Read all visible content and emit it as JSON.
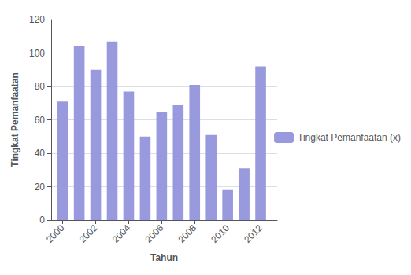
{
  "chart_data": {
    "type": "bar",
    "x": [
      2000,
      2001,
      2002,
      2003,
      2004,
      2005,
      2006,
      2007,
      2008,
      2009,
      2010,
      2011,
      2012
    ],
    "series": [
      {
        "name": "Tingkat Pemanfaatan (x)",
        "color": "#9999DD",
        "values": [
          71,
          104,
          90,
          107,
          77,
          50,
          65,
          69,
          81,
          51,
          18,
          31,
          92
        ]
      }
    ],
    "xlabel": "Tahun",
    "ylabel": "Tingkat Pemanfaatan",
    "xlim": [
      1999.3,
      2013.0
    ],
    "xticks": [
      2000,
      2002,
      2004,
      2006,
      2008,
      2010,
      2012
    ],
    "ylim": [
      0,
      120
    ],
    "yticks": [
      0,
      20,
      40,
      60,
      80,
      100,
      120
    ],
    "grid": true,
    "legend": "right"
  }
}
